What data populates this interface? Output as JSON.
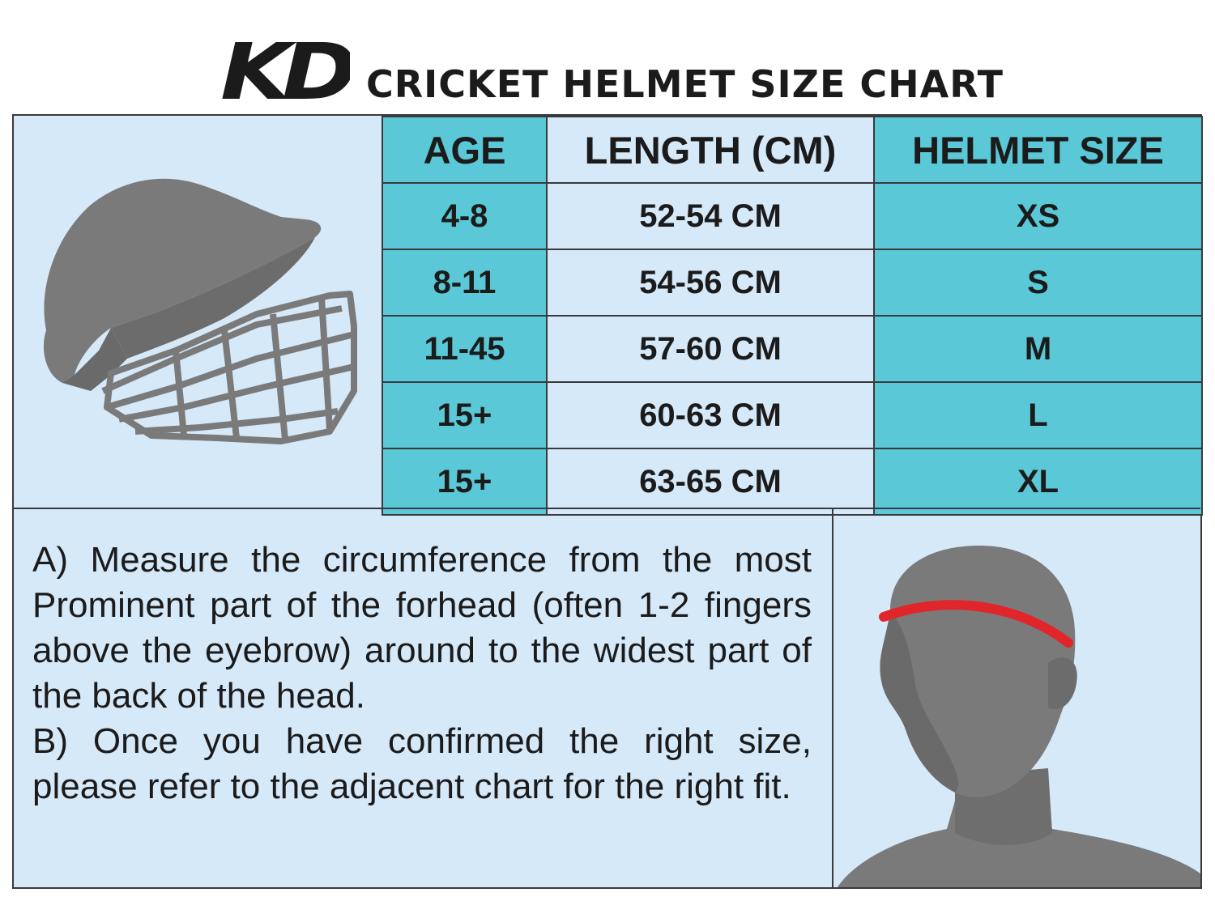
{
  "header": {
    "logo_text": "KD",
    "title": "CRICKET HELMET SIZE CHART"
  },
  "table": {
    "columns": [
      "AGE",
      "LENGTH (CM)",
      "HELMET SIZE"
    ],
    "rows": [
      {
        "age": "4-8",
        "length": "52-54 CM",
        "size": "XS"
      },
      {
        "age": "8-11",
        "length": "54-56 CM",
        "size": "S"
      },
      {
        "age": "11-45",
        "length": "57-60 CM",
        "size": "M"
      },
      {
        "age": "15+",
        "length": "60-63 CM",
        "size": "L"
      },
      {
        "age": "15+",
        "length": "63-65 CM",
        "size": "XL"
      }
    ]
  },
  "instructions": {
    "step_a": "A) Measure the circumference from the most Prominent part of the forhead (often 1-2 fingers above the eyebrow) around to the widest part of the back of the head.",
    "step_b": "B) Once you have confirmed the right size, please refer to the adjacent chart for the right fit."
  },
  "colors": {
    "teal": "#5ac8d6",
    "light_blue": "#d6e9f8",
    "illustration_gray": "#7a7a7a",
    "measure_band": "#e0262b"
  },
  "icons": [
    "helmet-illustration",
    "head-measurement-illustration",
    "kd-logo"
  ]
}
